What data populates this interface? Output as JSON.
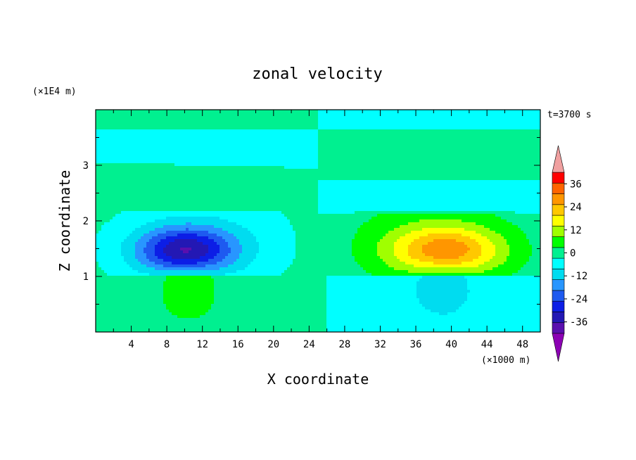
{
  "chart_data": {
    "type": "heatmap",
    "title": "zonal velocity",
    "xlabel": "X coordinate",
    "ylabel": "Z coordinate",
    "x_unit": "(×1000 m)",
    "y_unit": "(×1E4 m)",
    "time_label": "t=3700 s",
    "xlim": [
      0,
      50
    ],
    "ylim": [
      0,
      4
    ],
    "x_ticks": [
      "4",
      "8",
      "12",
      "16",
      "20",
      "24",
      "28",
      "32",
      "36",
      "40",
      "44",
      "48"
    ],
    "y_ticks": [
      "1",
      "2",
      "3"
    ],
    "colorbar": {
      "levels": [
        -42,
        -36,
        -30,
        -24,
        -18,
        -12,
        -6,
        0,
        6,
        12,
        18,
        24,
        30,
        36,
        42
      ],
      "tick_labels": [
        "36",
        "24",
        "12",
        "0",
        "-12",
        "-24",
        "-36"
      ],
      "colors": [
        "#5a0fae",
        "#2318b4",
        "#0c1ee6",
        "#1e5af0",
        "#2896ff",
        "#00dcf0",
        "#00ffff",
        "#00f090",
        "#00ff00",
        "#a0ff00",
        "#ffff00",
        "#ffc800",
        "#ff9600",
        "#ff6400",
        "#ff0000"
      ],
      "extend_low_color": "#8c00b4",
      "extend_high_color": "#f0a0a0"
    },
    "features": [
      {
        "cx": 10.0,
        "cz": 1.45,
        "peak": -30,
        "kind": "jet-core"
      },
      {
        "cx": 39.5,
        "cz": 1.45,
        "peak": 24,
        "kind": "jet-core"
      },
      {
        "cx": 10.0,
        "cz": 0.8,
        "peak": 9,
        "kind": "lower-lobe"
      },
      {
        "cx": 39.0,
        "cz": 0.8,
        "peak": -9,
        "kind": "lower-lobe"
      }
    ]
  }
}
